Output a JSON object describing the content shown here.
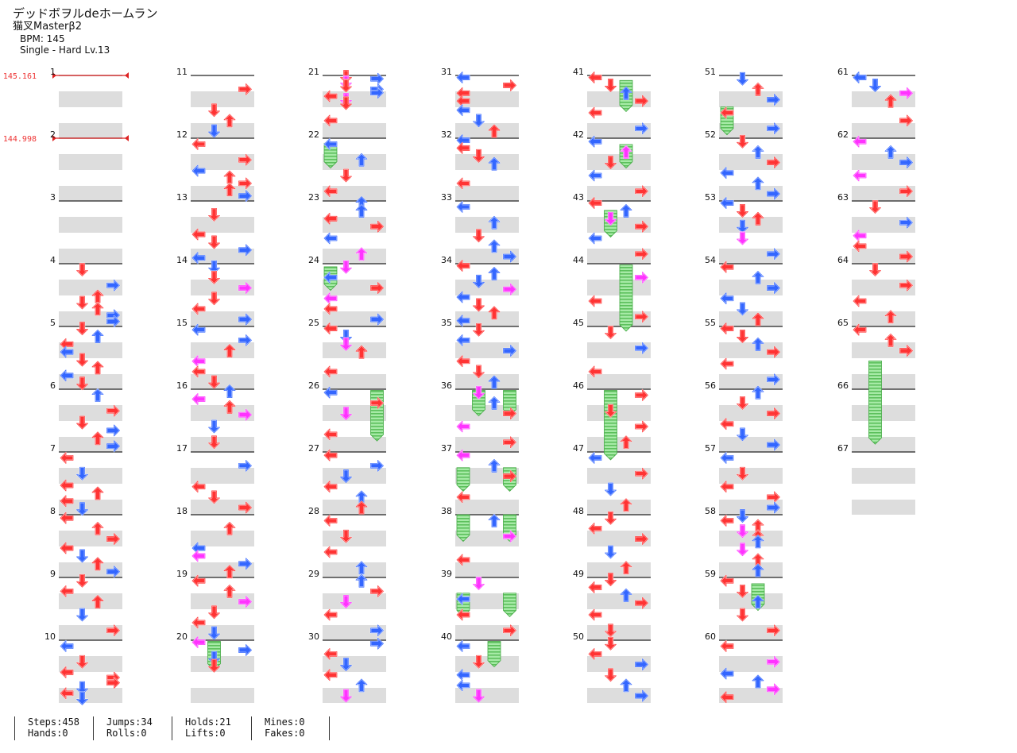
{
  "song": {
    "title": "デッドボヲルdeホームラン",
    "artist": "猫叉Masterβ2",
    "bpm_label": "BPM: 145",
    "difficulty": "Single - Hard  Lv.13"
  },
  "chart": {
    "measure_count": 67,
    "measures_per_column": 10,
    "bpm_changes": [
      {
        "measure": 1,
        "label": "145.161"
      },
      {
        "measure": 2,
        "label": "144.998"
      }
    ],
    "colors": {
      "red": "#ff3333",
      "blue": "#3366ff",
      "purple": "#bb44ff",
      "magenta": "#ff33ff",
      "hold": "#88dd88",
      "band": "#dddddd",
      "bpm_line": "#dd2222"
    },
    "arrows": {
      "1": "",
      "2": "",
      "3": "",
      "4": "D0r U1r R0b D1r U1r R1b R1b",
      "5": "D0r U0b L0r D1r L0b U1r L1b D1r",
      "6": "U0b R0r D1r R1b U1r R1b",
      "7": "L0r D0b L1r U1r L1r D1b",
      "8": "L0r U0r R0r L1r D1b U1r R1b",
      "9": "D0r L0r U0r D1b R1r",
      "10": "L0b D0r L1r R1r R1r D1b L1r D1b",
      "11": "R0r D1r U1r D1b",
      "12": "L0r R0r L1b U1r R1r U1r R1b",
      "13": "D0r L1r D1r R1b L1b",
      "14": "D0b D0r R0m D1r L1r R1b",
      "15": "L0b R0b U0r L1m L1r D1r",
      "16": "U0b L0m U0r R0m D1b D1r",
      "17": "R0b L1r D1r R1r",
      "18": "U0r L1b L1m R1b U1r",
      "19": "L0r U0r R0m D1r L1r D1b",
      "20": "L0m R0b D0b D0r",
      "21": "D0r R0b D0m D0r R0b R0b L0r D0m D0r L1r",
      "22": "L0b U0b D1r L1r",
      "23": "U0b U0b L0r R0r L1b U1m",
      "24": "D0m L0b R0r L1m L1r R1b",
      "25": "L0r D0b D0m U0r L1r",
      "26": "L0b R0r D0m L1r",
      "27": "L0r R0b D0b L1r U1b U1r",
      "28": "L0r D0r L1r U1b",
      "29": "U0b R0r D0m L1r R1b",
      "30": "R0b L0r D0b L1r U1b D1m",
      "31": "L0b R0r L0r L0r L1b D1b U1r",
      "32": "L0b L0r D0r U0b L1r",
      "33": "L0b U0b D1r U1b R1b",
      "34": "L0r U0b D0b R0m L1b D1r U1r L1b",
      "35": "D0r L0b R0b L1r D1r U1b",
      "36": "D0m U0b R0r L1m R1r",
      "37": "L0m U0b R0r L1r",
      "38": "U0b R0m L1r",
      "39": "D0m L0b L1r R1r",
      "40": "L0b D0r L1b L1b D1m",
      "41": "L0r D0r U0b R0r L1r R1b",
      "42": "L0b U0m D0r L1b R1r",
      "43": "L0r U0b D0m R0r L1b R1r",
      "44": "R0m L1r R1r",
      "45": "D0r R0b L1r",
      "46": "R0r D0r R1r U1r",
      "47": "L0b R0r D1b U1r",
      "48": "D0r L0r R0r D1b U1r",
      "49": "D0r L0r U0b R0r L1r D1r",
      "50": "D0r L0r R0b D1r U1b R1b",
      "51": "D0b U0r R0b L1r R1b",
      "52": "D0r U0b R0r L1b U1b R1b",
      "53": "L0b D0r U0r D0b D1m R1b",
      "54": "L0r U0b R0b L1b D1b U1r",
      "55": "L0r D0r U0b R0r L1r R1b",
      "56": "U0b D0r R0r L1r D1b R1b",
      "57": "L0b D0r L1r R1r R1b",
      "58": "D0b L0r U0r D0m U0r U0b D1m U1r U1b",
      "59": "L0r D0r U0b D1r R1r",
      "60": "L0r R0m L1b U1b R1m L1r",
      "61": "L0b D0b R0m U0r R1r",
      "62": "L0m U0b R0b L1m R1r",
      "63": "D0r R0b L1m L1r R1r",
      "64": "D0r R0r L1r U1r",
      "65": "L0r U0r R0r",
      "66": "",
      "67": ""
    },
    "holds": [
      {
        "lane": 0,
        "start": 22.08,
        "end": 22.45
      },
      {
        "lane": 0,
        "start": 24.05,
        "end": 24.4
      },
      {
        "lane": 2,
        "start": 41.08,
        "end": 41.55
      },
      {
        "lane": 1,
        "start": 43.15,
        "end": 43.55
      },
      {
        "lane": 2,
        "start": 42.1,
        "end": 42.45
      },
      {
        "lane": 3,
        "start": 26.02,
        "end": 26.8
      },
      {
        "lane": 0,
        "start": 51.5,
        "end": 51.92
      },
      {
        "lane": 2,
        "start": 59.1,
        "end": 59.5
      },
      {
        "lane": 1,
        "start": 20.02,
        "end": 20.45
      },
      {
        "lane": 1,
        "start": 36.02,
        "end": 36.4
      },
      {
        "lane": 3,
        "start": 36.02,
        "end": 36.4
      },
      {
        "lane": 0,
        "start": 37.25,
        "end": 37.6
      },
      {
        "lane": 3,
        "start": 37.25,
        "end": 37.6
      },
      {
        "lane": 0,
        "start": 38.0,
        "end": 38.4
      },
      {
        "lane": 3,
        "start": 38.0,
        "end": 38.4
      },
      {
        "lane": 0,
        "start": 39.25,
        "end": 39.6
      },
      {
        "lane": 3,
        "start": 39.25,
        "end": 39.6
      },
      {
        "lane": 2,
        "start": 40.02,
        "end": 40.4
      },
      {
        "lane": 2,
        "start": 44.02,
        "end": 45.05
      },
      {
        "lane": 1,
        "start": 46.02,
        "end": 47.1
      },
      {
        "lane": 1,
        "start": 65.55,
        "end": 66.85
      }
    ]
  },
  "stats": [
    {
      "line1": "Steps:458",
      "line2": "Hands:0"
    },
    {
      "line1": "Jumps:34",
      "line2": "Rolls:0"
    },
    {
      "line1": "Holds:21",
      "line2": "Lifts:0"
    },
    {
      "line1": "Mines:0",
      "line2": "Fakes:0"
    }
  ]
}
